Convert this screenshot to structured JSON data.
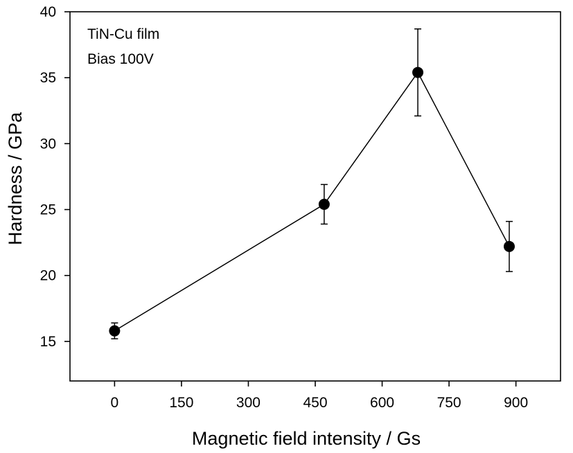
{
  "chart_data": {
    "type": "scatter",
    "xlabel": "Magnetic field intensity / Gs",
    "ylabel": "Hardness / GPa",
    "xlim": [
      -100,
      1000
    ],
    "ylim": [
      12,
      40
    ],
    "xticks": [
      0,
      150,
      300,
      450,
      600,
      750,
      900
    ],
    "yticks": [
      15,
      20,
      25,
      30,
      35,
      40
    ],
    "annotations": [
      "TiN-Cu film",
      "Bias 100V"
    ],
    "grid": false,
    "line": true,
    "series": [
      {
        "x": [
          0,
          470,
          680,
          885
        ],
        "y": [
          15.8,
          25.4,
          35.4,
          22.2
        ],
        "yerr": [
          0.6,
          1.5,
          3.3,
          1.9
        ]
      }
    ],
    "colors": {
      "line": "#000000",
      "marker": "#000000"
    }
  }
}
